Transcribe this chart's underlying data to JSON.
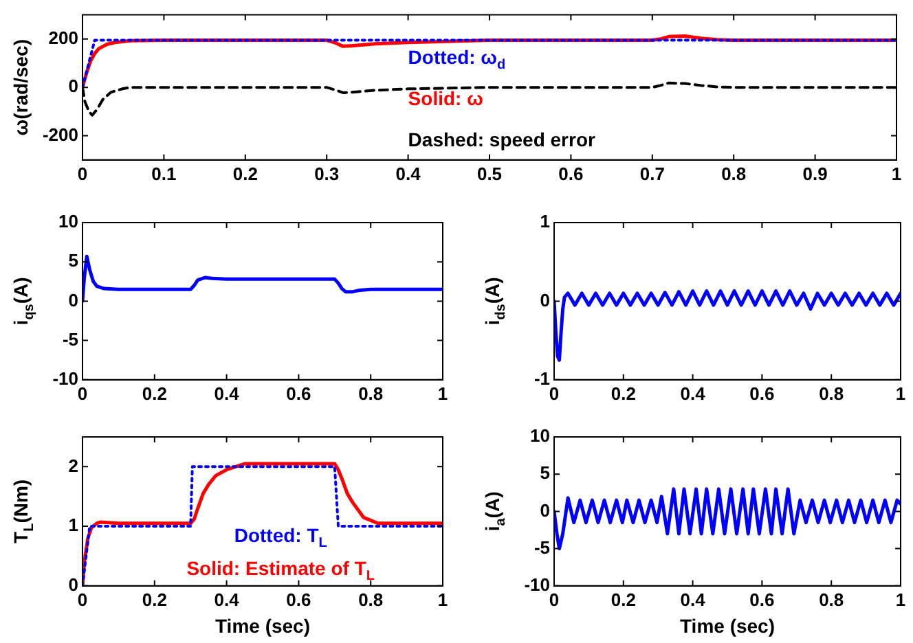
{
  "chart_data": [
    {
      "type": "line",
      "ylabel": "ω(rad/sec)",
      "xlim": [
        0,
        1
      ],
      "xticks": [
        0,
        0.1,
        0.2,
        0.3,
        0.4,
        0.5,
        0.6,
        0.7,
        0.8,
        0.9,
        1
      ],
      "ylim": [
        -300,
        300
      ],
      "yticks": [
        -200,
        0,
        200
      ],
      "legend": "center",
      "marker": "none",
      "grid": false,
      "series": [
        {
          "name": "Dotted: ω$_{d}$",
          "color": "#0000ff",
          "line_style": "dotted",
          "x": [
            0,
            0.015,
            1
          ],
          "values": [
            0,
            195,
            195
          ]
        },
        {
          "name": "Solid: ω",
          "color": "#ff0000",
          "line_style": "solid",
          "x": [
            0,
            0.005,
            0.01,
            0.015,
            0.02,
            0.03,
            0.04,
            0.06,
            0.1,
            0.3,
            0.31,
            0.32,
            0.33,
            0.36,
            0.4,
            0.45,
            0.5,
            0.7,
            0.71,
            0.72,
            0.74,
            0.76,
            0.78,
            0.8,
            1
          ],
          "values": [
            0,
            60,
            110,
            140,
            160,
            178,
            186,
            193,
            195,
            195,
            185,
            170,
            172,
            180,
            186,
            190,
            195,
            195,
            200,
            210,
            212,
            203,
            197,
            195,
            195
          ]
        },
        {
          "name": "Dashed: speed error",
          "color": "#000000",
          "line_style": "dashed",
          "x": [
            0,
            0.003,
            0.008,
            0.012,
            0.018,
            0.025,
            0.035,
            0.05,
            0.06,
            0.3,
            0.31,
            0.32,
            0.33,
            0.36,
            0.4,
            0.45,
            0.5,
            0.7,
            0.71,
            0.72,
            0.74,
            0.76,
            0.78,
            0.8,
            1
          ],
          "values": [
            0,
            -60,
            -100,
            -115,
            -90,
            -50,
            -20,
            -5,
            0,
            0,
            -10,
            -22,
            -20,
            -12,
            -6,
            -3,
            0,
            0,
            8,
            18,
            16,
            8,
            2,
            0,
            0
          ]
        }
      ]
    },
    {
      "type": "line",
      "ylabel": "i$_{qs}$(A)",
      "xlim": [
        0,
        1
      ],
      "xticks": [
        0,
        0.2,
        0.4,
        0.6,
        0.8,
        1
      ],
      "ylim": [
        -10,
        10
      ],
      "yticks": [
        -10,
        -5,
        0,
        5,
        10
      ],
      "marker": "none",
      "grid": false,
      "series": [
        {
          "color": "#0000ff",
          "line_style": "solid",
          "x": [
            0,
            0.005,
            0.012,
            0.02,
            0.03,
            0.04,
            0.06,
            0.1,
            0.3,
            0.31,
            0.32,
            0.34,
            0.36,
            0.4,
            0.7,
            0.71,
            0.72,
            0.73,
            0.75,
            0.77,
            0.8,
            1
          ],
          "values": [
            0,
            3,
            5.7,
            4,
            2.5,
            1.9,
            1.6,
            1.5,
            1.5,
            2,
            2.7,
            3,
            2.9,
            2.8,
            2.8,
            2.3,
            1.6,
            1.2,
            1.2,
            1.4,
            1.5,
            1.5
          ]
        }
      ]
    },
    {
      "type": "line",
      "ylabel": "i$_{ds}$(A)",
      "xlim": [
        0,
        1
      ],
      "xticks": [
        0,
        0.2,
        0.4,
        0.6,
        0.8,
        1
      ],
      "ylim": [
        -1,
        1
      ],
      "yticks": [
        -1,
        0,
        1
      ],
      "marker": "none",
      "grid": false,
      "series": [
        {
          "color": "#0000ff",
          "line_style": "solid",
          "x": [
            0,
            0.005,
            0.01,
            0.015,
            0.02,
            0.025,
            0.03,
            0.04,
            0.06,
            0.08,
            0.1,
            0.12,
            0.14,
            0.16,
            0.18,
            0.2,
            0.22,
            0.24,
            0.26,
            0.28,
            0.3,
            0.32,
            0.34,
            0.36,
            0.38,
            0.4,
            0.42,
            0.44,
            0.46,
            0.48,
            0.5,
            0.52,
            0.54,
            0.56,
            0.58,
            0.6,
            0.62,
            0.64,
            0.66,
            0.68,
            0.7,
            0.72,
            0.74,
            0.76,
            0.78,
            0.8,
            0.82,
            0.84,
            0.86,
            0.88,
            0.9,
            0.92,
            0.94,
            0.96,
            0.98,
            1
          ],
          "values": [
            0,
            -0.4,
            -0.7,
            -0.75,
            -0.4,
            -0.1,
            0.05,
            0.1,
            -0.05,
            0.1,
            -0.05,
            0.1,
            -0.05,
            0.1,
            -0.05,
            0.1,
            -0.05,
            0.1,
            -0.05,
            0.1,
            -0.05,
            0.11,
            -0.05,
            0.12,
            -0.05,
            0.13,
            -0.05,
            0.13,
            -0.05,
            0.13,
            -0.05,
            0.13,
            -0.05,
            0.13,
            -0.05,
            0.13,
            -0.05,
            0.13,
            -0.05,
            0.13,
            -0.05,
            0.1,
            -0.1,
            0.1,
            -0.05,
            0.1,
            -0.05,
            0.1,
            -0.05,
            0.1,
            -0.05,
            0.1,
            -0.05,
            0.1,
            -0.05,
            0.1
          ]
        }
      ]
    },
    {
      "type": "line",
      "ylabel": "T$_{L}$(Nm)",
      "xlabel": "Time (sec)",
      "xlim": [
        0,
        1
      ],
      "xticks": [
        0,
        0.2,
        0.4,
        0.6,
        0.8,
        1
      ],
      "ylim": [
        0,
        2.5
      ],
      "yticks": [
        0,
        1,
        2
      ],
      "legend": "bottom",
      "marker": "none",
      "grid": false,
      "series": [
        {
          "name": "Dotted: T$_{L}$",
          "color": "#0000ff",
          "line_style": "dotted",
          "x": [
            0,
            0.02,
            0.3,
            0.305,
            0.7,
            0.71,
            1
          ],
          "values": [
            0,
            1,
            1,
            2,
            2,
            1,
            1
          ]
        },
        {
          "name": "Solid: Estimate of T$_{L}$",
          "color": "#ff0000",
          "line_style": "solid",
          "x": [
            0,
            0.005,
            0.015,
            0.025,
            0.04,
            0.05,
            0.1,
            0.3,
            0.31,
            0.32,
            0.335,
            0.35,
            0.37,
            0.4,
            0.45,
            0.7,
            0.71,
            0.72,
            0.735,
            0.75,
            0.78,
            0.82,
            1
          ],
          "values": [
            0,
            0.4,
            0.8,
            0.98,
            1.05,
            1.07,
            1.05,
            1.05,
            1.12,
            1.3,
            1.55,
            1.7,
            1.85,
            1.95,
            2.05,
            2.05,
            1.95,
            1.8,
            1.55,
            1.4,
            1.15,
            1.05,
            1.05
          ]
        }
      ]
    },
    {
      "type": "line",
      "ylabel": "i$_{a}$(A)",
      "xlabel": "Time (sec)",
      "xlim": [
        0,
        1
      ],
      "xticks": [
        0,
        0.2,
        0.4,
        0.6,
        0.8,
        1
      ],
      "ylim": [
        -10,
        10
      ],
      "yticks": [
        -10,
        -5,
        0,
        5,
        10
      ],
      "marker": "none",
      "grid": false,
      "series": [
        {
          "color": "#0000ff",
          "line_style": "solid",
          "x": [
            0,
            0.008,
            0.015,
            0.025,
            0.04,
            0.057,
            0.075,
            0.092,
            0.11,
            0.127,
            0.145,
            0.162,
            0.18,
            0.197,
            0.21,
            0.228,
            0.245,
            0.262,
            0.28,
            0.297,
            0.31,
            0.327,
            0.345,
            0.36,
            0.375,
            0.392,
            0.41,
            0.425,
            0.44,
            0.458,
            0.475,
            0.492,
            0.51,
            0.527,
            0.545,
            0.56,
            0.575,
            0.592,
            0.61,
            0.627,
            0.64,
            0.658,
            0.675,
            0.692,
            0.71,
            0.727,
            0.745,
            0.762,
            0.78,
            0.797,
            0.815,
            0.832,
            0.85,
            0.867,
            0.885,
            0.902,
            0.92,
            0.937,
            0.955,
            0.972,
            0.99,
            1
          ],
          "values": [
            0,
            -3,
            -5,
            -3,
            1.8,
            -1.5,
            1.5,
            -1.5,
            1.5,
            -1.5,
            1.5,
            -1.5,
            1.5,
            -1.5,
            1.5,
            -1.5,
            1.5,
            -1.5,
            1.5,
            -1.5,
            2,
            -3,
            3,
            -3,
            3,
            -3,
            3,
            -3,
            3,
            -3,
            3,
            -3,
            3,
            -3,
            3,
            -3,
            3,
            -3,
            3,
            -3,
            3,
            -3,
            3,
            -3,
            1.5,
            -1.5,
            1.5,
            -1.5,
            1.5,
            -1.5,
            1.5,
            -1.5,
            1.5,
            -1.5,
            1.5,
            -1.5,
            1.5,
            -1.5,
            1.5,
            -1.5,
            1.5,
            1
          ]
        }
      ]
    }
  ]
}
